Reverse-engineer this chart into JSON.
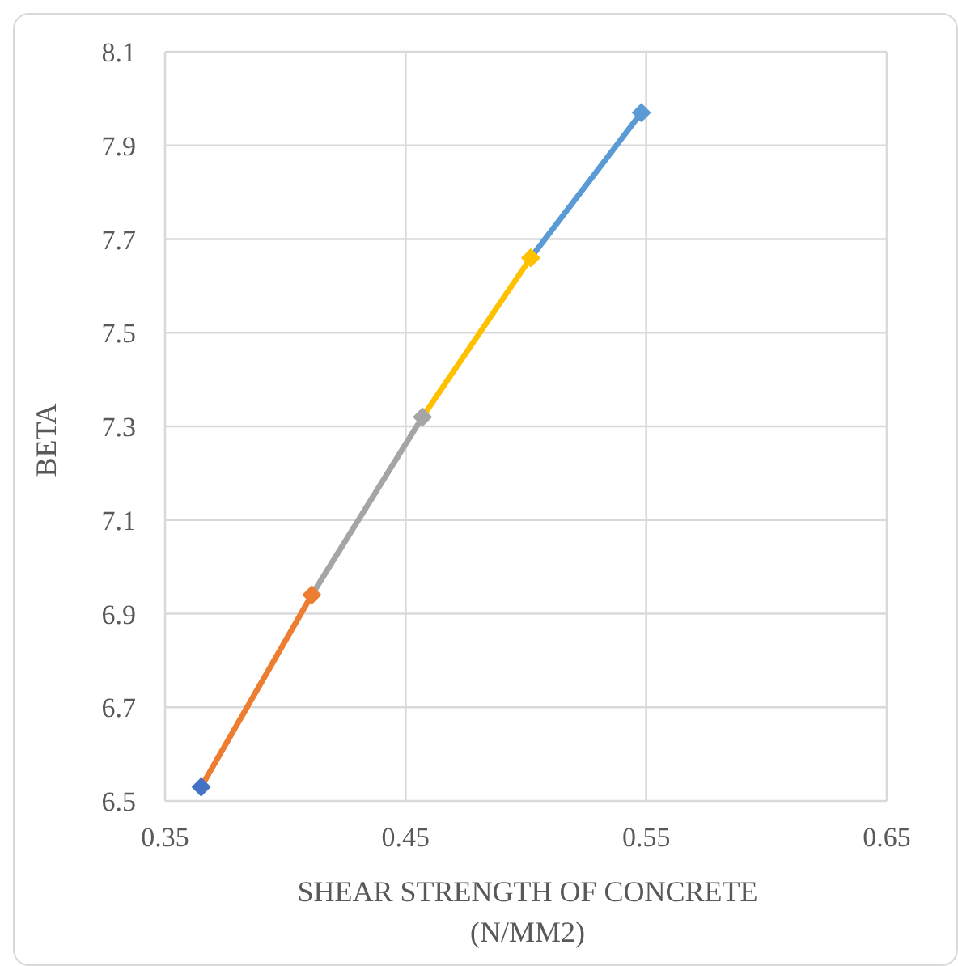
{
  "chart_data": {
    "type": "line",
    "xlabel": "SHEAR STRENGTH OF CONCRETE (N/MM2)",
    "ylabel": "BETA",
    "x": [
      0.365,
      0.411,
      0.457,
      0.502,
      0.548
    ],
    "values": [
      6.53,
      6.94,
      7.32,
      7.66,
      7.97
    ],
    "colors": [
      "#4472c4",
      "#ed7d31",
      "#a5a5a5",
      "#ffc000",
      "#5b9bd5"
    ],
    "marker": "diamond",
    "line_style": "solid",
    "grid": true,
    "xlim": [
      0.35,
      0.65
    ],
    "xticks": [
      0.35,
      0.45,
      0.55,
      0.65
    ],
    "ylim": [
      6.5,
      8.1
    ],
    "yticks": [
      6.5,
      6.7,
      6.9,
      7.1,
      7.3,
      7.5,
      7.7,
      7.9,
      8.1
    ]
  }
}
